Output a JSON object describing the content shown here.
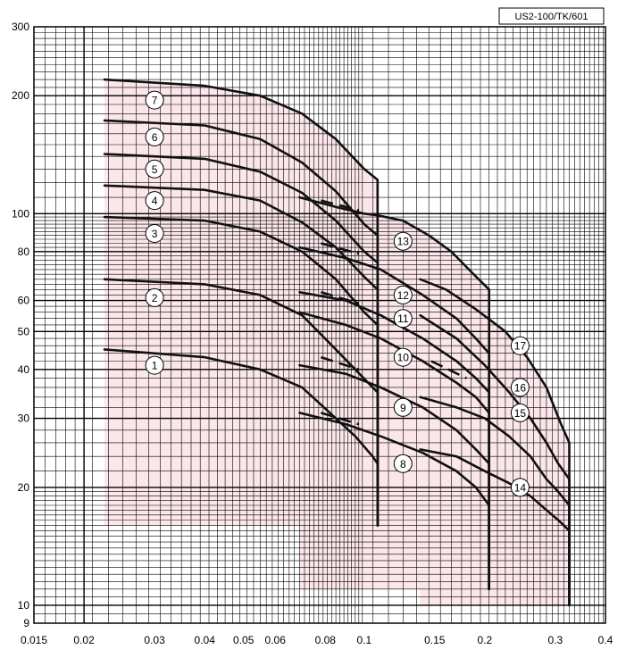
{
  "model_label": "US2-100/TK/601",
  "colors": {
    "region_fill": "#fbe6ea",
    "grid": "#000000",
    "curve": "#111111"
  },
  "chart_data": {
    "type": "line",
    "xscale": "log",
    "yscale": "log",
    "xlim": [
      0.015,
      0.4
    ],
    "ylim": [
      9,
      300
    ],
    "grid": true,
    "x_ticks": [
      {
        "v": 0.015,
        "t": "0.015"
      },
      {
        "v": 0.02,
        "t": "0.02"
      },
      {
        "v": 0.03,
        "t": "0.03"
      },
      {
        "v": 0.04,
        "t": "0.04"
      },
      {
        "v": 0.05,
        "t": "0.05"
      },
      {
        "v": 0.06,
        "t": "0.06"
      },
      {
        "v": 0.08,
        "t": "0.08"
      },
      {
        "v": 0.1,
        "t": "0.1"
      },
      {
        "v": 0.15,
        "t": "0.15"
      },
      {
        "v": 0.2,
        "t": "0.2"
      },
      {
        "v": 0.3,
        "t": "0.3"
      },
      {
        "v": 0.4,
        "t": "0.4"
      }
    ],
    "y_ticks": [
      {
        "v": 9,
        "t": "9"
      },
      {
        "v": 10,
        "t": "10"
      },
      {
        "v": 20,
        "t": "20"
      },
      {
        "v": 30,
        "t": "30"
      },
      {
        "v": 40,
        "t": "40"
      },
      {
        "v": 50,
        "t": "50"
      },
      {
        "v": 60,
        "t": "60"
      },
      {
        "v": 80,
        "t": "80"
      },
      {
        "v": 100,
        "t": "100"
      },
      {
        "v": 200,
        "t": "200"
      },
      {
        "v": 300,
        "t": "300"
      }
    ],
    "regions": [
      {
        "name": "1-7",
        "points": [
          [
            0.0225,
            220
          ],
          [
            0.04,
            212
          ],
          [
            0.055,
            200
          ],
          [
            0.07,
            180
          ],
          [
            0.085,
            155
          ],
          [
            0.1,
            130
          ],
          [
            0.108,
            122
          ],
          [
            0.108,
            16
          ],
          [
            0.0225,
            16
          ]
        ]
      },
      {
        "name": "8-13",
        "points": [
          [
            0.069,
            140
          ],
          [
            0.085,
            125
          ],
          [
            0.1,
            110
          ],
          [
            0.108,
            100
          ],
          [
            0.125,
            96
          ],
          [
            0.145,
            88
          ],
          [
            0.165,
            80
          ],
          [
            0.185,
            71
          ],
          [
            0.205,
            64
          ],
          [
            0.205,
            11
          ],
          [
            0.069,
            11
          ]
        ]
      },
      {
        "name": "14-17",
        "points": [
          [
            0.138,
            68
          ],
          [
            0.16,
            64
          ],
          [
            0.19,
            57
          ],
          [
            0.225,
            50
          ],
          [
            0.255,
            43
          ],
          [
            0.285,
            36
          ],
          [
            0.31,
            29
          ],
          [
            0.325,
            26
          ],
          [
            0.325,
            10
          ],
          [
            0.138,
            10
          ]
        ]
      }
    ],
    "series": [
      {
        "name": "1",
        "points": [
          [
            0.0225,
            45
          ],
          [
            0.04,
            43
          ],
          [
            0.055,
            40
          ],
          [
            0.07,
            36
          ],
          [
            0.085,
            30
          ],
          [
            0.095,
            27
          ],
          [
            0.105,
            24
          ],
          [
            0.108,
            23
          ],
          [
            0.108,
            16
          ]
        ]
      },
      {
        "name": "2",
        "points": [
          [
            0.0225,
            68
          ],
          [
            0.04,
            66
          ],
          [
            0.055,
            62
          ],
          [
            0.07,
            55
          ],
          [
            0.085,
            45
          ],
          [
            0.095,
            40
          ],
          [
            0.105,
            36
          ],
          [
            0.108,
            35
          ],
          [
            0.108,
            16
          ]
        ]
      },
      {
        "name": "3",
        "points": [
          [
            0.0225,
            98
          ],
          [
            0.04,
            96
          ],
          [
            0.055,
            90
          ],
          [
            0.07,
            80
          ],
          [
            0.085,
            68
          ],
          [
            0.1,
            56
          ],
          [
            0.108,
            52
          ],
          [
            0.108,
            16
          ]
        ]
      },
      {
        "name": "4",
        "points": [
          [
            0.0225,
            118
          ],
          [
            0.04,
            115
          ],
          [
            0.055,
            108
          ],
          [
            0.07,
            95
          ],
          [
            0.085,
            82
          ],
          [
            0.1,
            69
          ],
          [
            0.108,
            64
          ],
          [
            0.108,
            16
          ]
        ]
      },
      {
        "name": "5",
        "points": [
          [
            0.0225,
            142
          ],
          [
            0.04,
            138
          ],
          [
            0.055,
            128
          ],
          [
            0.07,
            113
          ],
          [
            0.085,
            96
          ],
          [
            0.1,
            80
          ],
          [
            0.108,
            75
          ],
          [
            0.108,
            16
          ]
        ]
      },
      {
        "name": "6",
        "points": [
          [
            0.0225,
            173
          ],
          [
            0.04,
            168
          ],
          [
            0.055,
            155
          ],
          [
            0.07,
            135
          ],
          [
            0.085,
            114
          ],
          [
            0.1,
            94
          ],
          [
            0.108,
            88
          ],
          [
            0.108,
            16
          ]
        ]
      },
      {
        "name": "7",
        "points": [
          [
            0.0225,
            220
          ],
          [
            0.04,
            212
          ],
          [
            0.055,
            200
          ],
          [
            0.07,
            180
          ],
          [
            0.085,
            155
          ],
          [
            0.1,
            130
          ],
          [
            0.108,
            122
          ],
          [
            0.108,
            16
          ]
        ]
      },
      {
        "name": "8",
        "points": [
          [
            0.069,
            31
          ],
          [
            0.09,
            29
          ],
          [
            0.11,
            27
          ],
          [
            0.14,
            24.5
          ],
          [
            0.17,
            22
          ],
          [
            0.19,
            20
          ],
          [
            0.205,
            18
          ],
          [
            0.205,
            11
          ]
        ]
      },
      {
        "name": "9",
        "points": [
          [
            0.069,
            41
          ],
          [
            0.09,
            39
          ],
          [
            0.11,
            36
          ],
          [
            0.14,
            32
          ],
          [
            0.17,
            28
          ],
          [
            0.19,
            25
          ],
          [
            0.205,
            23
          ],
          [
            0.205,
            11
          ]
        ]
      },
      {
        "name": "10",
        "points": [
          [
            0.069,
            56
          ],
          [
            0.09,
            52
          ],
          [
            0.11,
            48
          ],
          [
            0.14,
            42
          ],
          [
            0.17,
            37
          ],
          [
            0.19,
            34
          ],
          [
            0.205,
            31
          ],
          [
            0.205,
            11
          ]
        ]
      },
      {
        "name": "11",
        "points": [
          [
            0.069,
            63
          ],
          [
            0.09,
            60
          ],
          [
            0.11,
            55
          ],
          [
            0.14,
            48
          ],
          [
            0.17,
            42
          ],
          [
            0.19,
            38
          ],
          [
            0.205,
            35
          ],
          [
            0.205,
            11
          ]
        ]
      },
      {
        "name": "12",
        "points": [
          [
            0.069,
            82
          ],
          [
            0.09,
            77
          ],
          [
            0.11,
            72
          ],
          [
            0.14,
            62
          ],
          [
            0.17,
            54
          ],
          [
            0.19,
            48
          ],
          [
            0.205,
            44
          ],
          [
            0.205,
            11
          ]
        ]
      },
      {
        "name": "13",
        "points": [
          [
            0.069,
            110
          ],
          [
            0.085,
            104
          ],
          [
            0.1,
            100
          ],
          [
            0.108,
            99
          ],
          [
            0.125,
            96
          ],
          [
            0.145,
            88
          ],
          [
            0.165,
            80
          ],
          [
            0.185,
            71
          ],
          [
            0.205,
            64
          ],
          [
            0.205,
            11
          ]
        ]
      },
      {
        "name": "14",
        "points": [
          [
            0.138,
            25
          ],
          [
            0.17,
            24
          ],
          [
            0.2,
            22
          ],
          [
            0.23,
            20.5
          ],
          [
            0.26,
            19
          ],
          [
            0.285,
            17.5
          ],
          [
            0.305,
            16.5
          ],
          [
            0.325,
            15.5
          ],
          [
            0.325,
            10
          ]
        ]
      },
      {
        "name": "15",
        "points": [
          [
            0.138,
            34
          ],
          [
            0.17,
            32
          ],
          [
            0.2,
            30
          ],
          [
            0.23,
            27
          ],
          [
            0.26,
            24
          ],
          [
            0.285,
            21
          ],
          [
            0.305,
            19.5
          ],
          [
            0.325,
            18
          ],
          [
            0.325,
            10
          ]
        ]
      },
      {
        "name": "16",
        "points": [
          [
            0.138,
            55
          ],
          [
            0.17,
            48
          ],
          [
            0.2,
            41
          ],
          [
            0.23,
            35
          ],
          [
            0.26,
            30
          ],
          [
            0.285,
            26
          ],
          [
            0.305,
            23
          ],
          [
            0.325,
            21
          ],
          [
            0.325,
            10
          ]
        ]
      },
      {
        "name": "17",
        "points": [
          [
            0.138,
            68
          ],
          [
            0.16,
            64
          ],
          [
            0.19,
            57
          ],
          [
            0.225,
            50
          ],
          [
            0.255,
            43
          ],
          [
            0.285,
            36
          ],
          [
            0.31,
            29
          ],
          [
            0.325,
            26
          ],
          [
            0.325,
            10
          ]
        ]
      }
    ],
    "dashes": [
      {
        "points": [
          [
            0.078,
            108
          ],
          [
            0.097,
            102
          ]
        ]
      },
      {
        "points": [
          [
            0.078,
            84
          ],
          [
            0.097,
            79
          ]
        ]
      },
      {
        "points": [
          [
            0.078,
            63
          ],
          [
            0.097,
            59
          ]
        ]
      },
      {
        "points": [
          [
            0.078,
            43
          ],
          [
            0.097,
            40
          ]
        ]
      },
      {
        "points": [
          [
            0.078,
            31
          ],
          [
            0.097,
            29
          ]
        ]
      },
      {
        "points": [
          [
            0.147,
            42
          ],
          [
            0.18,
            38
          ]
        ]
      }
    ],
    "labels": [
      {
        "t": "1",
        "x": 0.03,
        "y": 41
      },
      {
        "t": "2",
        "x": 0.03,
        "y": 61
      },
      {
        "t": "3",
        "x": 0.03,
        "y": 89
      },
      {
        "t": "4",
        "x": 0.03,
        "y": 108
      },
      {
        "t": "5",
        "x": 0.03,
        "y": 130
      },
      {
        "t": "6",
        "x": 0.03,
        "y": 157
      },
      {
        "t": "7",
        "x": 0.03,
        "y": 195
      },
      {
        "t": "8",
        "x": 0.125,
        "y": 23
      },
      {
        "t": "9",
        "x": 0.125,
        "y": 32
      },
      {
        "t": "10",
        "x": 0.125,
        "y": 43
      },
      {
        "t": "11",
        "x": 0.125,
        "y": 54
      },
      {
        "t": "12",
        "x": 0.125,
        "y": 62
      },
      {
        "t": "13",
        "x": 0.125,
        "y": 85
      },
      {
        "t": "14",
        "x": 0.245,
        "y": 20
      },
      {
        "t": "15",
        "x": 0.245,
        "y": 31
      },
      {
        "t": "16",
        "x": 0.245,
        "y": 36
      },
      {
        "t": "17",
        "x": 0.245,
        "y": 46
      }
    ]
  }
}
